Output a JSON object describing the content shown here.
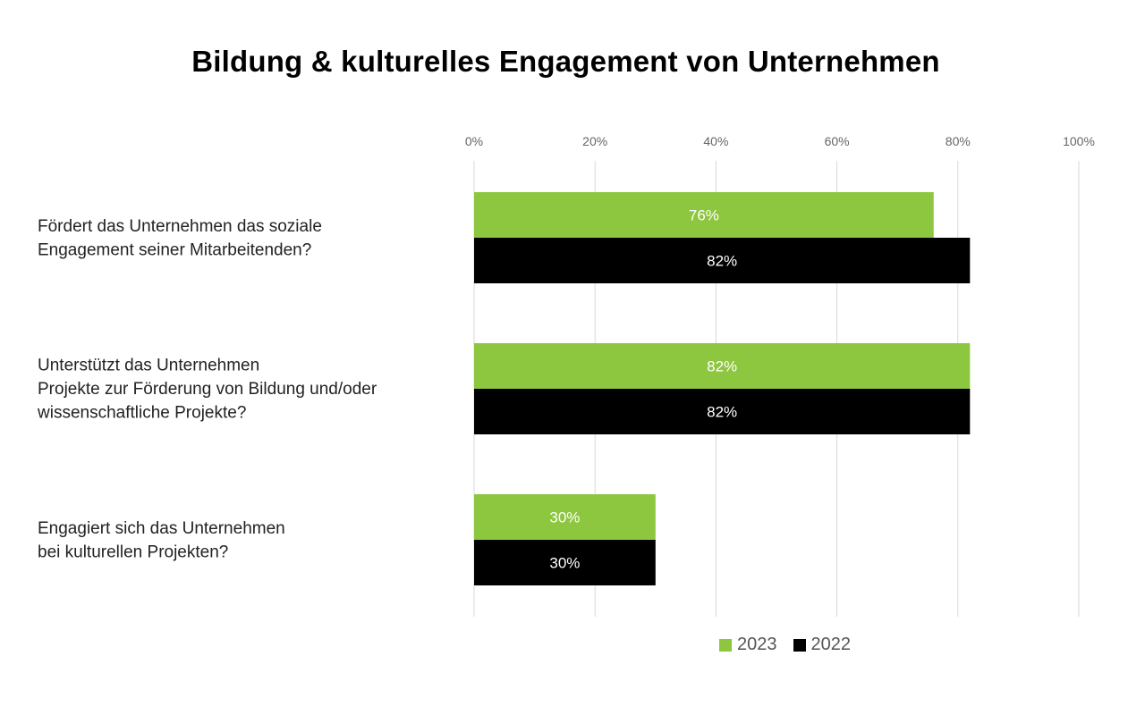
{
  "chart_data": {
    "type": "bar",
    "orientation": "horizontal",
    "title": "Bildung & kulturelles Engagement von Unternehmen",
    "categories": [
      [
        "Fördert das Unternehmen das soziale",
        "Engagement seiner Mitarbeitenden?"
      ],
      [
        "Unterstützt das Unternehmen",
        "Projekte zur Förderung von Bildung und/oder",
        "wissenschaftliche Projekte?"
      ],
      [
        "Engagiert sich das Unternehmen",
        "bei kulturellen Projekten?"
      ]
    ],
    "series": [
      {
        "name": "2023",
        "color": "#8dc63f",
        "values": [
          76,
          82,
          30
        ]
      },
      {
        "name": "2022",
        "color": "#000000",
        "values": [
          82,
          82,
          30
        ]
      }
    ],
    "value_suffix": "%",
    "xlim": [
      0,
      100
    ],
    "xticks": [
      0,
      20,
      40,
      60,
      80,
      100
    ],
    "xtick_labels": [
      "0%",
      "20%",
      "40%",
      "60%",
      "80%",
      "100%"
    ],
    "x_axis_position": "top",
    "grid": true,
    "legend_position": "bottom",
    "data_labels": true
  }
}
